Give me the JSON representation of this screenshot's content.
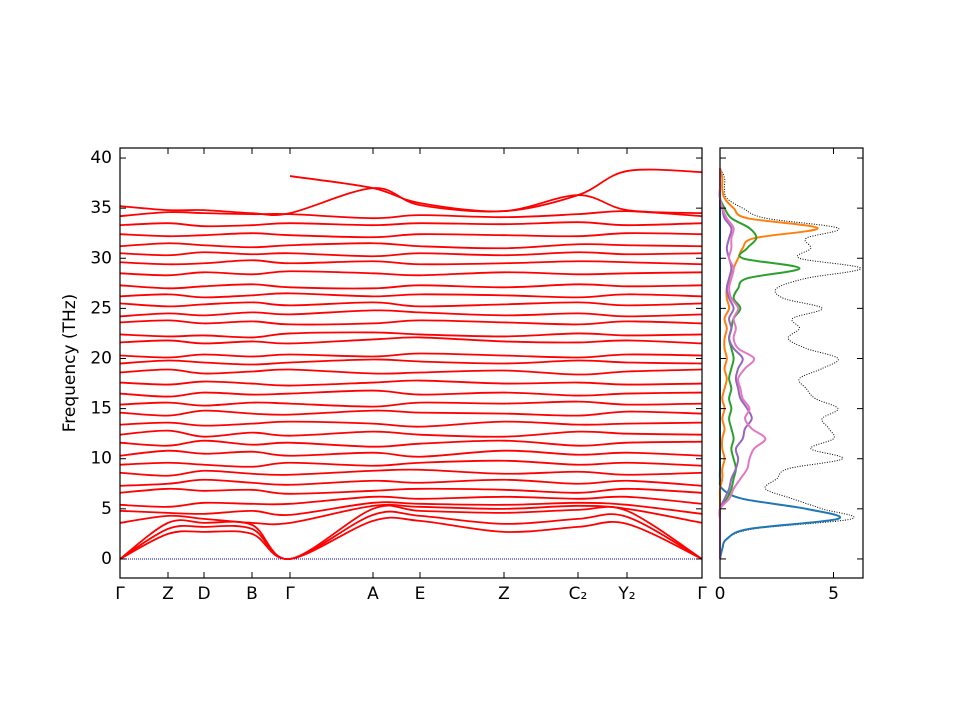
{
  "chart_data": [
    {
      "type": "line",
      "ylabel": "Frequency (THz)",
      "x": [
        0,
        48,
        84,
        132,
        170,
        253,
        300,
        384,
        458,
        507,
        582
      ],
      "xlim": [
        0,
        582
      ],
      "xticks": [
        {
          "value": 0,
          "label": "Γ"
        },
        {
          "value": 48,
          "label": "Z"
        },
        {
          "value": 84,
          "label": "D"
        },
        {
          "value": 132,
          "label": "B"
        },
        {
          "value": 170,
          "label": "Γ"
        },
        {
          "value": 253,
          "label": "A"
        },
        {
          "value": 300,
          "label": "E"
        },
        {
          "value": 384,
          "label": "Z"
        },
        {
          "value": 458,
          "label": "C₂"
        },
        {
          "value": 507,
          "label": "Y₂"
        },
        {
          "value": 582,
          "label": "Γ"
        }
      ],
      "ylim": [
        -1.9,
        41
      ],
      "yticks": [
        0,
        5,
        10,
        15,
        20,
        25,
        30,
        35,
        40
      ],
      "color": "#ff0000",
      "bands": [
        [
          0,
          2.5,
          2.7,
          2.5,
          0,
          3.8,
          3.8,
          2.7,
          3.2,
          3.5,
          0
        ],
        [
          0,
          3.0,
          3.2,
          3.0,
          0,
          4.4,
          4.3,
          3.5,
          4.0,
          4.2,
          0
        ],
        [
          0,
          3.6,
          3.6,
          3.4,
          0,
          5.0,
          4.8,
          4.6,
          4.9,
          4.8,
          0
        ],
        [
          3.6,
          4.3,
          4.0,
          3.6,
          3.6,
          5.3,
          5.2,
          5.0,
          5.3,
          5.0,
          3.6
        ],
        [
          4.8,
          4.6,
          4.5,
          4.8,
          4.4,
          5.6,
          5.5,
          5.4,
          5.6,
          5.4,
          4.5
        ],
        [
          5.4,
          5.2,
          5.6,
          5.5,
          5.5,
          6.2,
          6.0,
          6.2,
          6.0,
          6.2,
          5.5
        ],
        [
          6.6,
          7.0,
          6.8,
          6.9,
          6.5,
          6.8,
          7.0,
          6.9,
          6.6,
          7.0,
          6.6
        ],
        [
          7.3,
          7.5,
          7.9,
          7.6,
          7.4,
          7.8,
          7.6,
          7.9,
          7.5,
          7.8,
          7.3
        ],
        [
          8.6,
          8.3,
          8.8,
          8.5,
          8.4,
          8.8,
          8.9,
          8.5,
          8.7,
          8.4,
          8.6
        ],
        [
          9.4,
          9.6,
          9.4,
          9.2,
          9.6,
          9.3,
          9.6,
          9.8,
          9.4,
          9.6,
          9.3
        ],
        [
          10.3,
          10.8,
          10.5,
          10.7,
          10.3,
          10.6,
          10.2,
          10.8,
          10.4,
          10.6,
          10.3
        ],
        [
          11.6,
          11.3,
          11.8,
          11.4,
          11.6,
          11.2,
          11.5,
          11.8,
          11.3,
          11.6,
          11.7
        ],
        [
          12.4,
          12.8,
          12.2,
          12.6,
          12.3,
          12.7,
          12.4,
          12.2,
          12.7,
          12.5,
          12.4
        ],
        [
          13.4,
          13.6,
          13.3,
          13.5,
          13.7,
          13.5,
          13.2,
          13.7,
          13.4,
          13.5,
          13.6
        ],
        [
          14.6,
          14.3,
          14.8,
          14.5,
          14.4,
          14.8,
          14.6,
          14.5,
          14.3,
          14.7,
          14.5
        ],
        [
          15.4,
          15.6,
          15.3,
          15.6,
          15.5,
          15.2,
          15.6,
          15.5,
          15.7,
          15.4,
          15.5
        ],
        [
          16.5,
          16.2,
          16.6,
          16.4,
          16.5,
          16.8,
          16.4,
          16.6,
          16.3,
          16.5,
          16.6
        ],
        [
          17.6,
          17.4,
          17.7,
          17.5,
          17.3,
          17.6,
          17.8,
          17.5,
          17.6,
          17.4,
          17.5
        ],
        [
          18.6,
          18.9,
          18.5,
          18.7,
          18.9,
          18.5,
          18.6,
          18.8,
          18.4,
          18.7,
          18.9
        ],
        [
          19.5,
          19.8,
          19.6,
          19.4,
          19.6,
          19.9,
          19.7,
          19.5,
          19.8,
          19.6,
          19.5
        ],
        [
          20.3,
          20.1,
          20.4,
          20.2,
          20.4,
          20.2,
          20.5,
          20.3,
          20.1,
          20.4,
          20.3
        ],
        [
          21.6,
          21.8,
          21.5,
          21.7,
          21.5,
          21.9,
          22.1,
          21.7,
          21.6,
          21.8,
          21.5
        ],
        [
          22.4,
          22.2,
          22.3,
          22.1,
          22.5,
          22.6,
          22.4,
          22.2,
          22.5,
          22.3,
          22.4
        ],
        [
          23.6,
          23.8,
          23.5,
          23.7,
          23.4,
          23.5,
          23.8,
          23.6,
          23.4,
          23.7,
          23.5
        ],
        [
          24.2,
          24.5,
          24.3,
          24.6,
          24.4,
          24.8,
          24.6,
          24.3,
          24.5,
          24.2,
          24.4
        ],
        [
          25.5,
          25.2,
          25.4,
          25.6,
          25.3,
          25.6,
          25.2,
          25.4,
          25.6,
          25.3,
          25.5
        ],
        [
          26.2,
          26.4,
          26.1,
          26.3,
          26.5,
          26.2,
          26.4,
          26.3,
          26.1,
          26.4,
          26.2
        ],
        [
          27.3,
          27.0,
          27.2,
          27.4,
          27.1,
          27.0,
          27.3,
          27.1,
          27.4,
          27.2,
          27.3
        ],
        [
          28.5,
          28.3,
          28.6,
          28.4,
          28.7,
          28.5,
          28.3,
          28.6,
          28.4,
          28.5,
          28.6
        ],
        [
          29.6,
          29.4,
          29.5,
          29.8,
          29.5,
          29.7,
          29.4,
          29.5,
          29.7,
          29.6,
          29.4
        ],
        [
          30.5,
          30.3,
          30.6,
          30.4,
          30.5,
          30.2,
          30.5,
          30.3,
          30.6,
          30.4,
          30.5
        ],
        [
          31.2,
          31.5,
          31.3,
          31.1,
          31.3,
          31.5,
          31.2,
          31.0,
          31.4,
          31.3,
          31.2
        ],
        [
          32.4,
          32.2,
          32.3,
          32.5,
          32.3,
          32.1,
          32.4,
          32.3,
          32.2,
          32.5,
          32.4
        ],
        [
          33.3,
          33.5,
          33.2,
          33.3,
          33.5,
          33.3,
          33.5,
          33.4,
          33.6,
          33.3,
          33.5
        ],
        [
          34.2,
          34.6,
          34.5,
          34.4,
          34.4,
          34.0,
          34.3,
          34.1,
          34.4,
          34.7,
          34.2
        ],
        [
          35.2,
          34.8,
          34.8,
          34.5,
          34.5,
          37.0,
          35.3,
          34.7,
          36.3,
          34.8,
          34.5
        ],
        [
          null,
          null,
          null,
          null,
          38.2,
          37.0,
          35.5,
          34.7,
          36.3,
          38.7,
          38.6
        ]
      ]
    },
    {
      "type": "dos",
      "y": [
        0,
        1,
        2,
        3,
        4,
        5,
        6,
        7,
        8,
        9,
        10,
        11,
        12,
        13,
        14,
        15,
        16,
        17,
        18,
        19,
        20,
        21,
        22,
        23,
        24,
        25,
        26,
        27,
        28,
        29,
        30,
        31,
        32,
        33,
        34,
        35,
        36,
        37,
        38,
        39
      ],
      "xlim": [
        0,
        6.3
      ],
      "xticks": [
        0,
        5
      ],
      "ylim": [
        -1.9,
        41
      ],
      "yticks": [
        0,
        5,
        10,
        15,
        20,
        25,
        30,
        35,
        40
      ],
      "series": [
        {
          "color": "#000000",
          "values": [
            0,
            0.1,
            0.3,
            1.5,
            5.8,
            4.5,
            3.2,
            2.0,
            2.5,
            3.0,
            5.4,
            4.0,
            5.0,
            4.8,
            4.5,
            5.2,
            4.2,
            3.8,
            3.5,
            4.5,
            5.2,
            3.8,
            3.0,
            3.5,
            3.2,
            4.5,
            2.8,
            2.5,
            3.8,
            6.2,
            3.5,
            4.0,
            3.8,
            5.2,
            2.0,
            1.0,
            0.3,
            0.2,
            0.2,
            0
          ]
        },
        {
          "color": "#1f77b4",
          "values": [
            0,
            0.1,
            0.3,
            1.3,
            5.2,
            3.8,
            1.0,
            0.1,
            0,
            0,
            0,
            0,
            0,
            0,
            0,
            0,
            0,
            0,
            0,
            0,
            0,
            0,
            0,
            0,
            0,
            0,
            0,
            0,
            0,
            0,
            0,
            0,
            0,
            0,
            0,
            0,
            0,
            0,
            0,
            0
          ]
        },
        {
          "color": "#ff7f0e",
          "values": [
            0,
            0,
            0,
            0,
            0,
            0,
            0,
            0,
            0.1,
            0.1,
            0.2,
            0.1,
            0.1,
            0.2,
            0.1,
            0.2,
            0.1,
            0.2,
            0.3,
            0.2,
            0.3,
            0.2,
            0.2,
            0.3,
            0.2,
            0.4,
            0.3,
            0.3,
            0.5,
            0.6,
            0.8,
            1.0,
            1.5,
            4.3,
            1.2,
            0.6,
            0.2,
            0.1,
            0.1,
            0
          ]
        },
        {
          "color": "#2ca02c",
          "values": [
            0,
            0,
            0,
            0,
            0,
            0,
            0.3,
            0.5,
            0.6,
            0.7,
            0.6,
            0.5,
            0.6,
            0.5,
            0.4,
            0.5,
            0.4,
            0.5,
            0.4,
            0.5,
            0.6,
            0.5,
            0.4,
            0.5,
            0.6,
            0.9,
            0.6,
            0.8,
            1.2,
            3.5,
            1.0,
            1.2,
            1.6,
            1.3,
            0.5,
            0.2,
            0,
            0,
            0,
            0
          ]
        },
        {
          "color": "#9467bd",
          "values": [
            0,
            0,
            0,
            0,
            0,
            0,
            0.2,
            0.4,
            0.5,
            0.7,
            0.8,
            0.7,
            1.0,
            1.1,
            1.4,
            1.2,
            0.9,
            0.8,
            0.7,
            0.8,
            1.0,
            0.6,
            0.4,
            0.5,
            0.4,
            0.6,
            0.4,
            0.3,
            0.4,
            0.5,
            0.4,
            0.3,
            0.4,
            0.5,
            0.2,
            0.1,
            0,
            0,
            0,
            0
          ]
        },
        {
          "color": "#e377c2",
          "values": [
            0,
            0,
            0,
            0,
            0,
            0,
            0.4,
            0.6,
            0.9,
            1.2,
            1.3,
            1.5,
            2.0,
            1.4,
            1.1,
            1.3,
            1.0,
            0.9,
            0.8,
            1.1,
            1.5,
            0.8,
            0.6,
            0.7,
            0.6,
            0.8,
            0.5,
            0.4,
            0.5,
            0.6,
            0.4,
            0.5,
            0.5,
            0.6,
            0.3,
            0.1,
            0,
            0,
            0,
            0
          ]
        }
      ]
    }
  ]
}
